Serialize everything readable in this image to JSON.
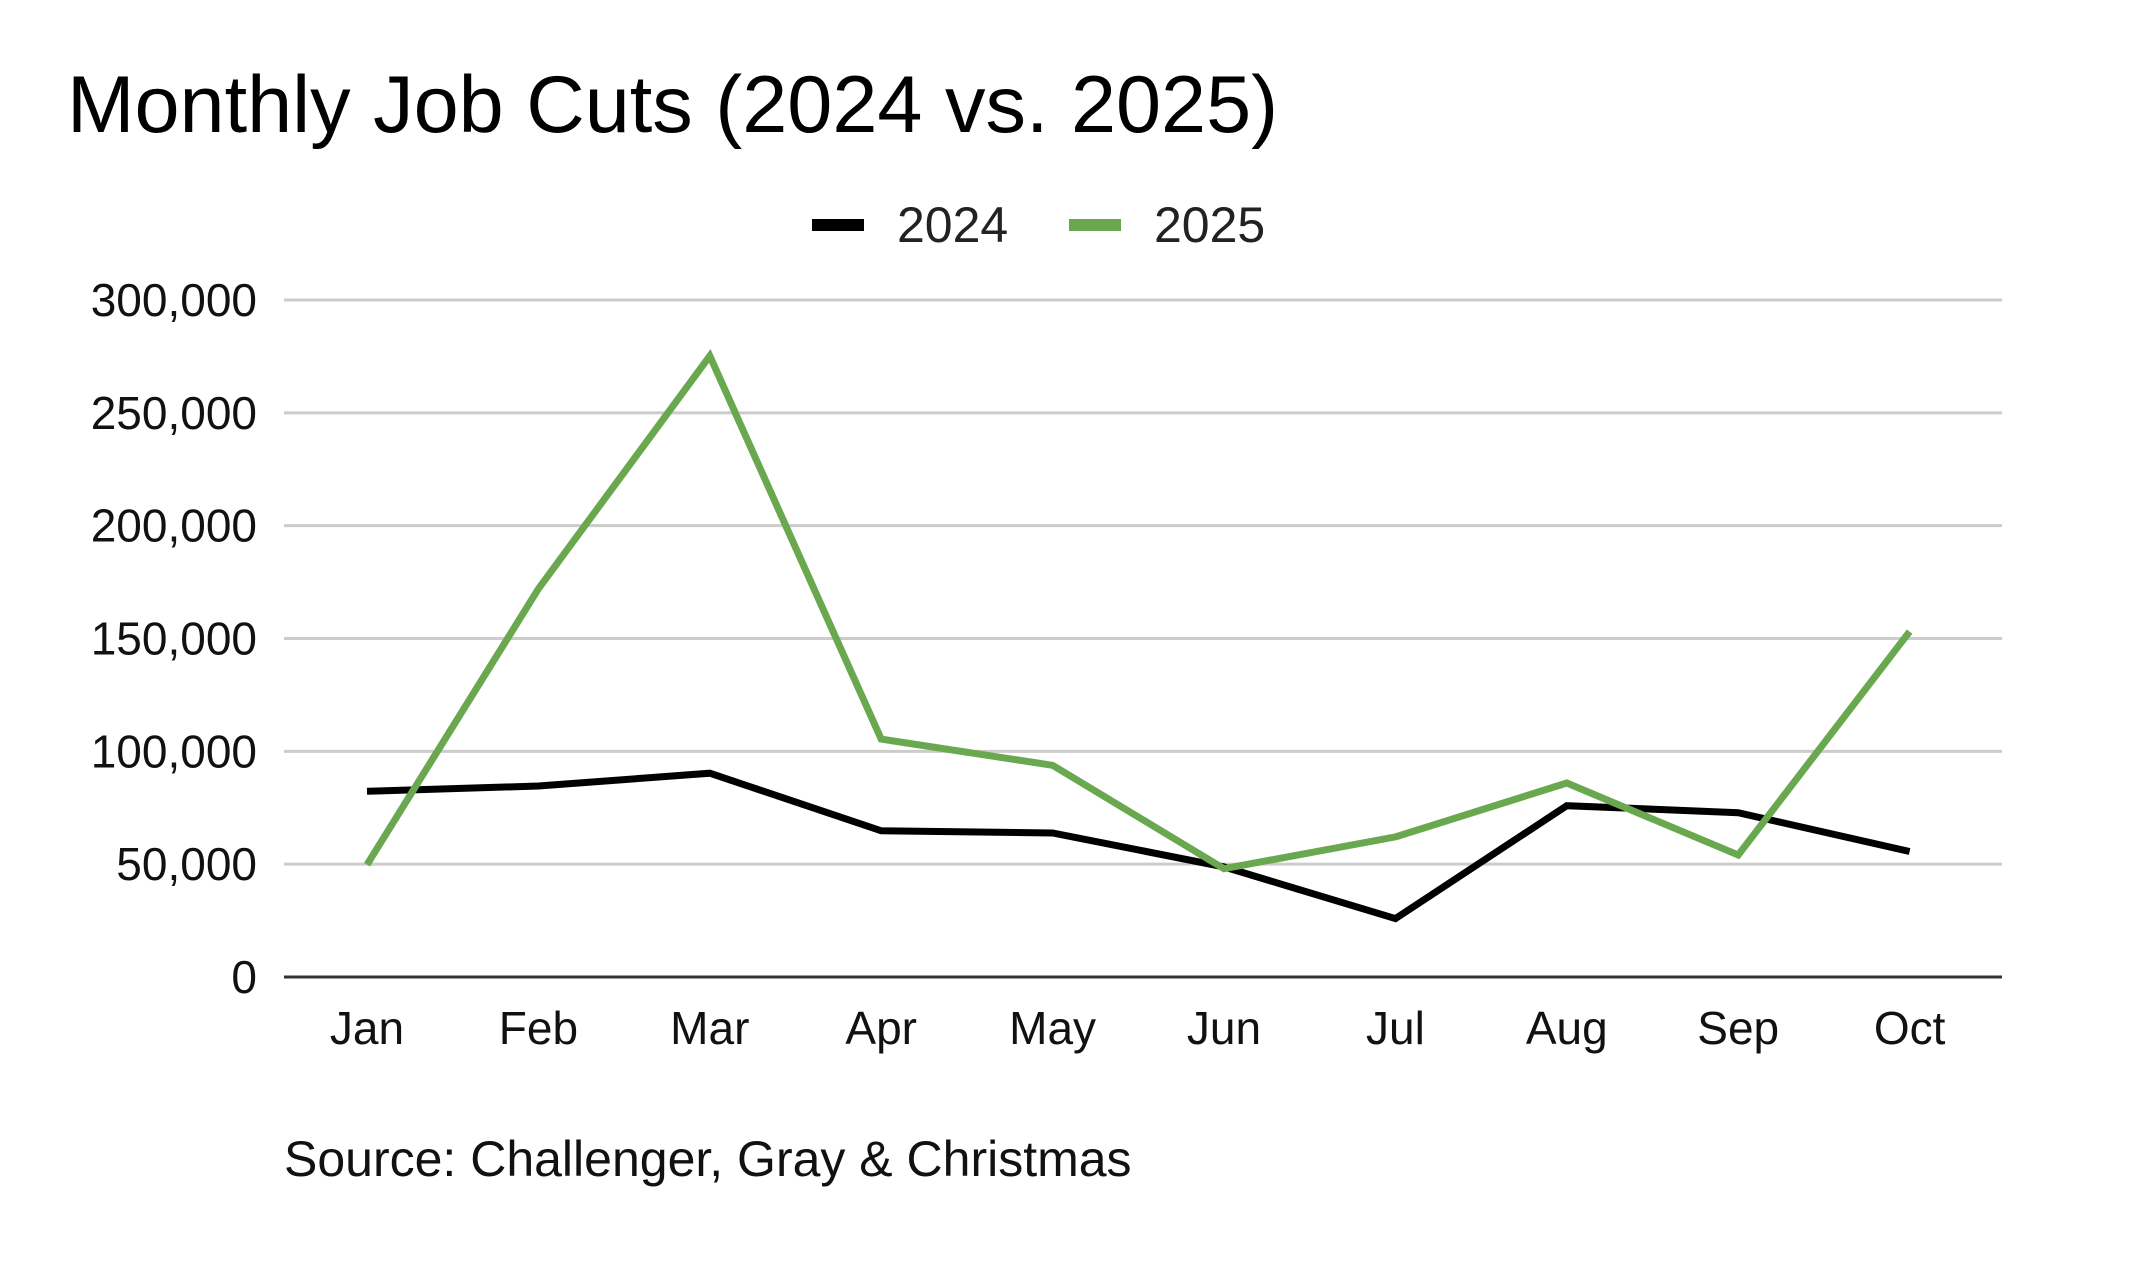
{
  "chart_data": {
    "type": "line",
    "title": "Monthly Job Cuts (2024 vs. 2025)",
    "xlabel": "",
    "ylabel": "",
    "categories": [
      "Jan",
      "Feb",
      "Mar",
      "Apr",
      "May",
      "Jun",
      "Jul",
      "Aug",
      "Sep",
      "Oct"
    ],
    "ylim": [
      0,
      300000
    ],
    "yticks": [
      0,
      50000,
      100000,
      150000,
      200000,
      250000,
      300000
    ],
    "ytick_labels": [
      "0",
      "50,000",
      "100,000",
      "150,000",
      "200,000",
      "250,000",
      "300,000"
    ],
    "grid": true,
    "legend_position": "top-center",
    "series": [
      {
        "name": "2024",
        "color": "#000000",
        "values": [
          82307,
          84638,
          90309,
          64789,
          63816,
          48786,
          25885,
          75891,
          72821,
          55597
        ]
      },
      {
        "name": "2025",
        "color": "#6aa84f",
        "values": [
          49795,
          172017,
          275240,
          105441,
          93816,
          47999,
          62075,
          85979,
          54064,
          153074
        ]
      }
    ],
    "source": "Source: Challenger, Gray & Christmas"
  }
}
